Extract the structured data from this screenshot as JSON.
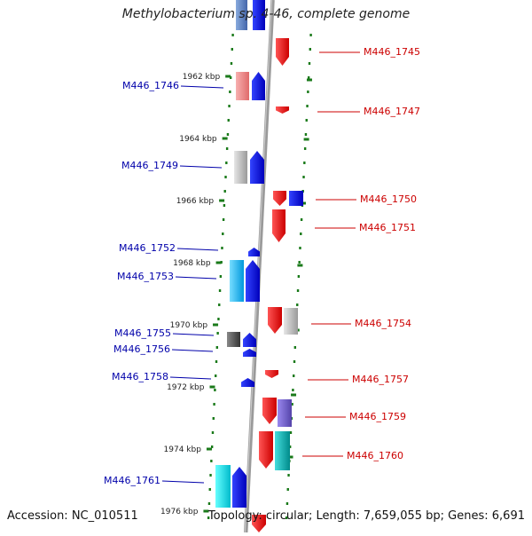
{
  "title": "Methylobacterium sp. 4-46, complete genome",
  "footer": {
    "accession": "Accession: NC_010511",
    "summary": "Topology: circular; Length: 7,659,055 bp; Genes: 6,691"
  },
  "scale": {
    "ticks": [
      {
        "label": "1962 kbp",
        "kbp": 1962
      },
      {
        "label": "1964 kbp",
        "kbp": 1964
      },
      {
        "label": "1966 kbp",
        "kbp": 1966
      },
      {
        "label": "1968 kbp",
        "kbp": 1968
      },
      {
        "label": "1970 kbp",
        "kbp": 1970
      },
      {
        "label": "1972 kbp",
        "kbp": 1972
      },
      {
        "label": "1974 kbp",
        "kbp": 1974
      },
      {
        "label": "1976 kbp",
        "kbp": 1976
      }
    ]
  },
  "genes": [
    {
      "name": "M446_1745",
      "strand": "forward",
      "color": "#dd0000"
    },
    {
      "name": "M446_1746",
      "strand": "reverse",
      "color": "#0000cc"
    },
    {
      "name": "M446_1747",
      "strand": "forward",
      "color": "#dd0000"
    },
    {
      "name": "M446_1749",
      "strand": "reverse",
      "color": "#0000cc"
    },
    {
      "name": "M446_1750",
      "strand": "forward",
      "color": "#dd0000"
    },
    {
      "name": "M446_1751",
      "strand": "forward",
      "color": "#dd0000"
    },
    {
      "name": "M446_1752",
      "strand": "reverse",
      "color": "#0000cc"
    },
    {
      "name": "M446_1753",
      "strand": "reverse",
      "color": "#0000cc"
    },
    {
      "name": "M446_1754",
      "strand": "forward",
      "color": "#dd0000"
    },
    {
      "name": "M446_1755",
      "strand": "reverse",
      "color": "#0000cc"
    },
    {
      "name": "M446_1756",
      "strand": "reverse",
      "color": "#0000cc"
    },
    {
      "name": "M446_1757",
      "strand": "forward",
      "color": "#dd0000"
    },
    {
      "name": "M446_1758",
      "strand": "reverse",
      "color": "#0000cc"
    },
    {
      "name": "M446_1759",
      "strand": "forward",
      "color": "#dd0000"
    },
    {
      "name": "M446_1760",
      "strand": "forward",
      "color": "#dd0000"
    },
    {
      "name": "M446_1761",
      "strand": "reverse",
      "color": "#0000cc"
    }
  ],
  "colors": {
    "forward_label": "#cc0000",
    "reverse_label": "#0000aa",
    "backbone": "#888888",
    "ruler_dots": "#1a7a1a"
  }
}
